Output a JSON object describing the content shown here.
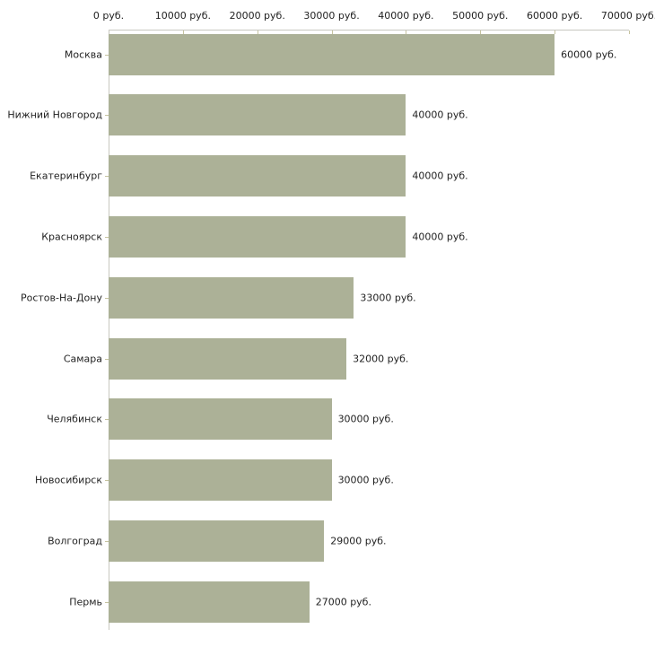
{
  "chart_data": {
    "type": "bar",
    "orientation": "horizontal",
    "title": "",
    "xlabel": "",
    "ylabel": "",
    "unit_suffix": " руб.",
    "categories": [
      "Москва",
      "Нижний Новгород",
      "Екатеринбург",
      "Красноярск",
      "Ростов-На-Дону",
      "Самара",
      "Челябинск",
      "Новосибирск",
      "Волгоград",
      "Пермь"
    ],
    "values": [
      60000,
      40000,
      40000,
      40000,
      33000,
      32000,
      30000,
      30000,
      29000,
      27000
    ],
    "value_labels": [
      "60000 руб.",
      "40000 руб.",
      "40000 руб.",
      "40000 руб.",
      "33000 руб.",
      "32000 руб.",
      "30000 руб.",
      "30000 руб.",
      "29000 руб.",
      "27000 руб."
    ],
    "x_ticks": [
      0,
      10000,
      20000,
      30000,
      40000,
      50000,
      60000,
      70000
    ],
    "x_tick_labels": [
      "0 руб.",
      "10000 руб.",
      "20000 руб.",
      "30000 руб.",
      "40000 руб.",
      "50000 руб.",
      "60000 руб.",
      "70000 руб."
    ],
    "xlim": [
      0,
      70000
    ],
    "legend": null,
    "grid": false,
    "colors": {
      "bar": "#acb197",
      "axis_line": "#c8c8c0",
      "tick_mark": "#c6c3a0",
      "text": "#1f1f1f",
      "background": "#ffffff"
    }
  }
}
